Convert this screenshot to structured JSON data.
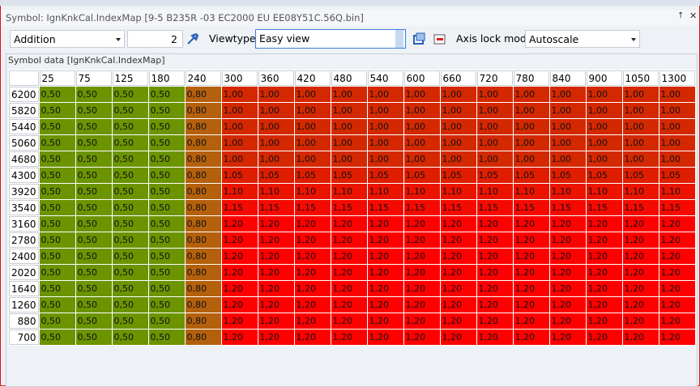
{
  "window": {
    "title": "Symbol: IgnKnkCal.IndexMap [9-5 B235R -03 EC2000 EU EE08Y51C.56Q.bin]"
  },
  "toolbar": {
    "operation": "Addition",
    "operand": "2",
    "viewtype_label": "Viewtype",
    "viewtype": "Easy view",
    "axis_lock_label": "Axis lock mode",
    "axis_lock": "Autoscale"
  },
  "group": {
    "title": "Symbol data [IgnKnkCal.IndexMap]"
  },
  "table": {
    "columns": [
      "25",
      "75",
      "125",
      "180",
      "240",
      "300",
      "360",
      "420",
      "480",
      "540",
      "600",
      "660",
      "720",
      "780",
      "840",
      "900",
      "1050",
      "1300"
    ],
    "rows": [
      {
        "label": "6200",
        "cells": [
          "0,50",
          "0,50",
          "0,50",
          "0,50",
          "0,80",
          "1,00",
          "1,00",
          "1,00",
          "1,00",
          "1,00",
          "1,00",
          "1,00",
          "1,00",
          "1,00",
          "1,00",
          "1,00",
          "1,00",
          "1,00"
        ]
      },
      {
        "label": "5820",
        "cells": [
          "0,50",
          "0,50",
          "0,50",
          "0,50",
          "0,80",
          "1,00",
          "1,00",
          "1,00",
          "1,00",
          "1,00",
          "1,00",
          "1,00",
          "1,00",
          "1,00",
          "1,00",
          "1,00",
          "1,00",
          "1,00"
        ]
      },
      {
        "label": "5440",
        "cells": [
          "0,50",
          "0,50",
          "0,50",
          "0,50",
          "0,80",
          "1,00",
          "1,00",
          "1,00",
          "1,00",
          "1,00",
          "1,00",
          "1,00",
          "1,00",
          "1,00",
          "1,00",
          "1,00",
          "1,00",
          "1,00"
        ]
      },
      {
        "label": "5060",
        "cells": [
          "0,50",
          "0,50",
          "0,50",
          "0,50",
          "0,80",
          "1,00",
          "1,00",
          "1,00",
          "1,00",
          "1,00",
          "1,00",
          "1,00",
          "1,00",
          "1,00",
          "1,00",
          "1,00",
          "1,00",
          "1,00"
        ]
      },
      {
        "label": "4680",
        "cells": [
          "0,50",
          "0,50",
          "0,50",
          "0,50",
          "0,80",
          "1,00",
          "1,00",
          "1,00",
          "1,00",
          "1,00",
          "1,00",
          "1,00",
          "1,00",
          "1,00",
          "1,00",
          "1,00",
          "1,00",
          "1,00"
        ]
      },
      {
        "label": "4300",
        "cells": [
          "0,50",
          "0,50",
          "0,50",
          "0,50",
          "0,80",
          "1,05",
          "1,05",
          "1,05",
          "1,05",
          "1,05",
          "1,05",
          "1,05",
          "1,05",
          "1,05",
          "1,05",
          "1,05",
          "1,05",
          "1,05"
        ]
      },
      {
        "label": "3920",
        "cells": [
          "0,50",
          "0,50",
          "0,50",
          "0,50",
          "0,80",
          "1,10",
          "1,10",
          "1,10",
          "1,10",
          "1,10",
          "1,10",
          "1,10",
          "1,10",
          "1,10",
          "1,10",
          "1,10",
          "1,10",
          "1,10"
        ]
      },
      {
        "label": "3540",
        "cells": [
          "0,50",
          "0,50",
          "0,50",
          "0,50",
          "0,80",
          "1,15",
          "1,15",
          "1,15",
          "1,15",
          "1,15",
          "1,15",
          "1,15",
          "1,15",
          "1,15",
          "1,15",
          "1,15",
          "1,15",
          "1,15"
        ]
      },
      {
        "label": "3160",
        "cells": [
          "0,50",
          "0,50",
          "0,50",
          "0,50",
          "0,80",
          "1,20",
          "1,20",
          "1,20",
          "1,20",
          "1,20",
          "1,20",
          "1,20",
          "1,20",
          "1,20",
          "1,20",
          "1,20",
          "1,20",
          "1,20"
        ]
      },
      {
        "label": "2780",
        "cells": [
          "0,50",
          "0,50",
          "0,50",
          "0,50",
          "0,80",
          "1,20",
          "1,20",
          "1,20",
          "1,20",
          "1,20",
          "1,20",
          "1,20",
          "1,20",
          "1,20",
          "1,20",
          "1,20",
          "1,20",
          "1,20"
        ]
      },
      {
        "label": "2400",
        "cells": [
          "0,50",
          "0,50",
          "0,50",
          "0,50",
          "0,80",
          "1,20",
          "1,20",
          "1,20",
          "1,20",
          "1,20",
          "1,20",
          "1,20",
          "1,20",
          "1,20",
          "1,20",
          "1,20",
          "1,20",
          "1,20"
        ]
      },
      {
        "label": "2020",
        "cells": [
          "0,50",
          "0,50",
          "0,50",
          "0,50",
          "0,80",
          "1,20",
          "1,20",
          "1,20",
          "1,20",
          "1,20",
          "1,20",
          "1,20",
          "1,20",
          "1,20",
          "1,20",
          "1,20",
          "1,20",
          "1,20"
        ]
      },
      {
        "label": "1640",
        "cells": [
          "0,50",
          "0,50",
          "0,50",
          "0,50",
          "0,80",
          "1,20",
          "1,20",
          "1,20",
          "1,20",
          "1,20",
          "1,20",
          "1,20",
          "1,20",
          "1,20",
          "1,20",
          "1,20",
          "1,20",
          "1,20"
        ]
      },
      {
        "label": "1260",
        "cells": [
          "0,50",
          "0,50",
          "0,50",
          "0,50",
          "0,80",
          "1,20",
          "1,20",
          "1,20",
          "1,20",
          "1,20",
          "1,20",
          "1,20",
          "1,20",
          "1,20",
          "1,20",
          "1,20",
          "1,20",
          "1,20"
        ]
      },
      {
        "label": "880",
        "cells": [
          "0,50",
          "0,50",
          "0,50",
          "0,50",
          "0,80",
          "1,20",
          "1,20",
          "1,20",
          "1,20",
          "1,20",
          "1,20",
          "1,20",
          "1,20",
          "1,20",
          "1,20",
          "1,20",
          "1,20",
          "1,20"
        ]
      },
      {
        "label": "700",
        "cells": [
          "0,50",
          "0,50",
          "0,50",
          "0,50",
          "0,80",
          "1,20",
          "1,20",
          "1,20",
          "1,20",
          "1,20",
          "1,20",
          "1,20",
          "1,20",
          "1,20",
          "1,20",
          "1,20",
          "1,20",
          "1,20"
        ]
      }
    ]
  }
}
